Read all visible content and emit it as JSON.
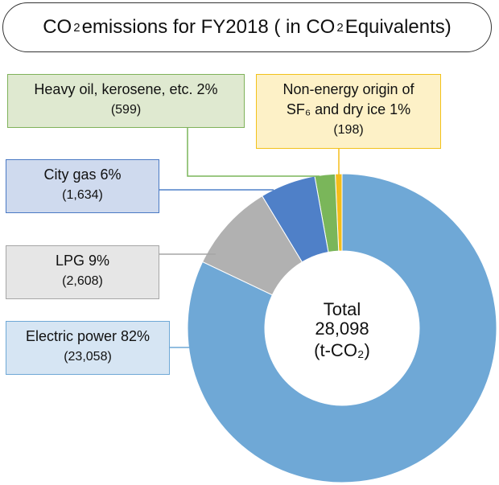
{
  "title": {
    "prefix": "CO",
    "sub": "2",
    "middle": " emissions for FY2018 ( in CO",
    "sub2": "2",
    "suffix": " Equivalents)"
  },
  "center": {
    "label": "Total",
    "value": "28,098",
    "unit": "(t-CO₂)"
  },
  "chart_data": {
    "type": "pie",
    "donut": true,
    "title": "CO₂ emissions for FY2018 ( in CO₂ Equivalents)",
    "unit": "t-CO₂",
    "total": 28098,
    "slices": [
      {
        "name": "Electric power",
        "percent": "82%",
        "value": 23058,
        "value_label": "(23,058)",
        "color": "#6fa8d6"
      },
      {
        "name": "LPG",
        "percent": "9%",
        "value": 2608,
        "value_label": "(2,608)",
        "color": "#b1b1b1"
      },
      {
        "name": "City gas",
        "percent": "6%",
        "value": 1634,
        "value_label": "(1,634)",
        "color": "#4f80c8"
      },
      {
        "name": "Heavy oil, kerosene, etc.",
        "percent": "2%",
        "value": 599,
        "value_label": "(599)",
        "color": "#7ab65a"
      },
      {
        "name": "Non-energy origin of",
        "name_line2": "SF₆ and dry ice",
        "percent": "1%",
        "value": 198,
        "value_label": "(198)",
        "color": "#f4bd1a"
      }
    ]
  }
}
